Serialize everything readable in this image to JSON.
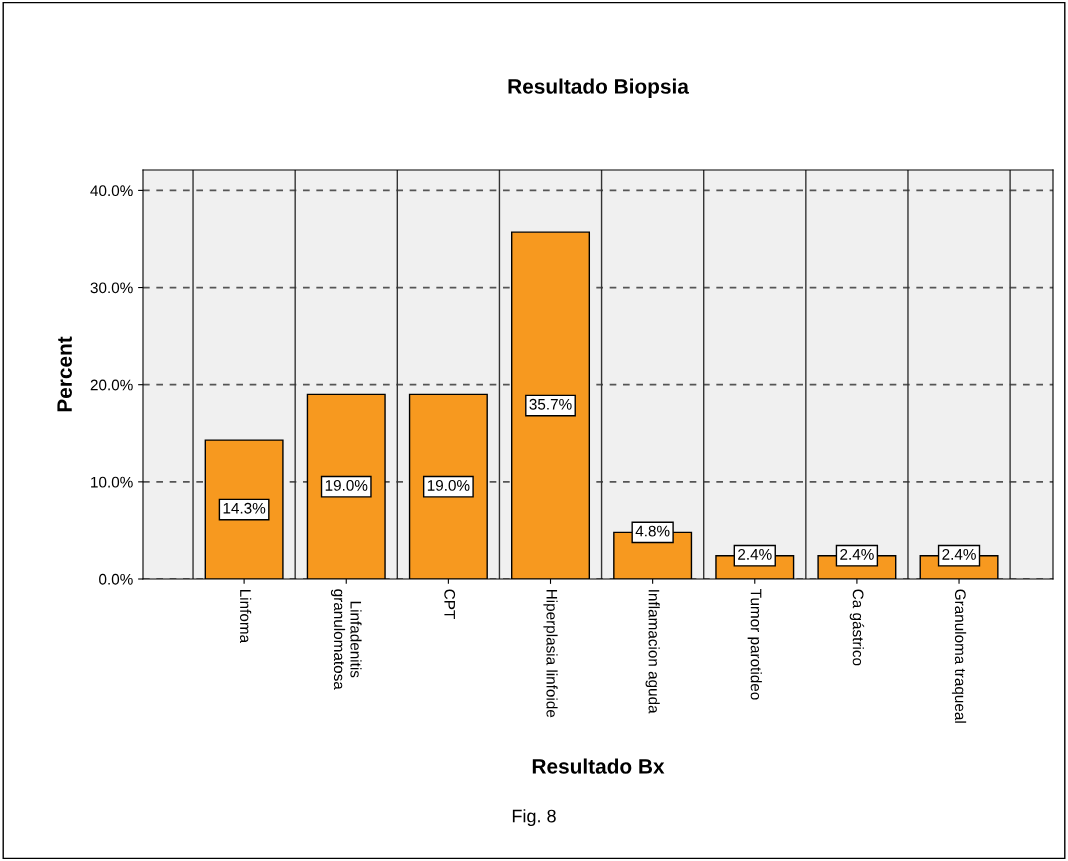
{
  "chart_data": {
    "type": "bar",
    "title": "Resultado Biopsia",
    "xlabel": "Resultado Bx",
    "ylabel": "Percent",
    "categories": [
      "Linfoma",
      "Linfadenitis\ngranulomatosa",
      "CPT",
      "Hiperplasia linfoide",
      "Inflamacion aguda",
      "Tumor parotideo",
      "Ca gástrico",
      "Granuloma traqueal"
    ],
    "values": [
      14.3,
      19.0,
      19.0,
      35.7,
      4.8,
      2.4,
      2.4,
      2.4
    ],
    "value_labels": [
      "14.3%",
      "19.0%",
      "19.0%",
      "35.7%",
      "4.8%",
      "2.4%",
      "2.4%",
      "2.4%"
    ],
    "color": "#f7991f",
    "ylim": [
      0,
      42.1
    ],
    "yticks": [
      {
        "value": 0,
        "label": "0.0%"
      },
      {
        "value": 10,
        "label": "10.0%"
      },
      {
        "value": 20,
        "label": "20.0%"
      },
      {
        "value": 30,
        "label": "30.0%"
      },
      {
        "value": 40,
        "label": "40.0%"
      }
    ],
    "grid": true,
    "annotations": [
      "Fig. 8"
    ]
  }
}
